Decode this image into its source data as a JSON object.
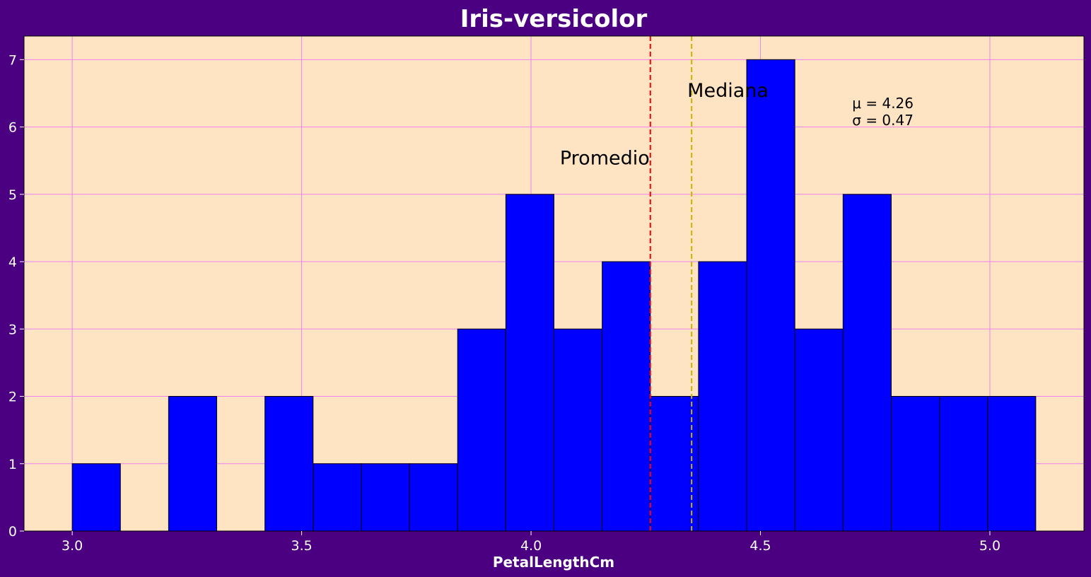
{
  "chart_data": {
    "type": "bar",
    "title": "Iris-versicolor",
    "xlabel": "PetalLengthCm",
    "ylabel": "",
    "xlim": [
      2.895,
      5.205
    ],
    "ylim": [
      0,
      7.35
    ],
    "xticks": [
      3.0,
      3.5,
      4.0,
      4.5,
      5.0
    ],
    "xtick_labels": [
      "3.0",
      "3.5",
      "4.0",
      "4.5",
      "5.0"
    ],
    "yticks": [
      0,
      1,
      2,
      3,
      4,
      5,
      6,
      7
    ],
    "ytick_labels": [
      "0",
      "1",
      "2",
      "3",
      "4",
      "5",
      "6",
      "7"
    ],
    "grid": true,
    "bins": {
      "edges": [
        3.0,
        3.105,
        3.21,
        3.315,
        3.42,
        3.525,
        3.63,
        3.735,
        3.84,
        3.945,
        4.05,
        4.155,
        4.26,
        4.365,
        4.47,
        4.575,
        4.68,
        4.785,
        4.89,
        4.995,
        5.1
      ],
      "counts": [
        1,
        0,
        2,
        0,
        2,
        1,
        1,
        1,
        3,
        5,
        3,
        4,
        2,
        4,
        7,
        3,
        5,
        2,
        2,
        2
      ]
    },
    "lines": [
      {
        "label": "Promedio",
        "x": 4.26,
        "color": "#ff0000"
      },
      {
        "label": "Mediana",
        "x": 4.35,
        "color": "#c8b400"
      }
    ],
    "annotations": [
      {
        "text": "Promedio",
        "x": 4.26,
        "y": 5.55,
        "align": "right"
      },
      {
        "text": "Mediana",
        "x": 4.35,
        "y": 6.55,
        "align": "left"
      }
    ],
    "stats": {
      "mu_label": "μ = 4.26",
      "sigma_label": "σ = 0.47",
      "x": 4.7,
      "y_top": 6.35
    }
  },
  "colors": {
    "background": "#4b0082",
    "plot_area": "#ffe4c4",
    "bar": "#0000ff",
    "bar_edge": "#000000",
    "grid": "#ee82ee",
    "text": "#ffffff"
  }
}
